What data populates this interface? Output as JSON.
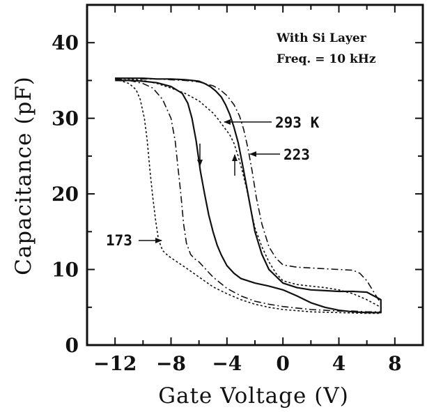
{
  "chart_data": {
    "type": "line",
    "xlabel": "Gate Voltage (V)",
    "ylabel": "Capacitance (pF)",
    "xlim": [
      -14,
      10
    ],
    "ylim": [
      0,
      45
    ],
    "x_ticks": [
      -12,
      -8,
      -4,
      0,
      4,
      8
    ],
    "x_tick_labels": [
      "−12",
      "−8",
      "−4",
      "0",
      "4",
      "8"
    ],
    "y_ticks": [
      0,
      10,
      20,
      30,
      40
    ],
    "y_tick_labels": [
      "0",
      "10",
      "20",
      "30",
      "40"
    ],
    "annotations": [
      "With Si Layer",
      "Freq. = 10 kHz"
    ],
    "series": [
      {
        "name": "293 K",
        "color": "#111111",
        "style": "solid",
        "x": [
          -12,
          -11,
          -10,
          -9,
          -8,
          -7.2,
          -6.8,
          -6.5,
          -6.2,
          -5.9,
          -5.6,
          -5.3,
          -5.0,
          -4.7,
          -4.4,
          -4.0,
          -3.5,
          -3.0,
          -2.0,
          -1.0,
          0.0,
          1.0,
          2.0,
          3.0,
          4.0,
          5.0,
          6.0,
          6.6,
          7.0,
          7.0,
          6.0,
          5.0,
          4.0,
          3.0,
          2.0,
          1.0,
          0.0,
          -1.0,
          -1.5,
          -2.0,
          -2.3,
          -2.6,
          -2.9,
          -3.2,
          -3.5,
          -3.8,
          -4.1,
          -4.4,
          -4.8,
          -5.2,
          -5.6,
          -6.0,
          -6.5,
          -7.0,
          -8.0,
          -9.0,
          -10.0,
          -11.0,
          -12.0
        ],
        "y": [
          35.0,
          35.0,
          34.9,
          34.7,
          34.2,
          33.3,
          32.0,
          30.0,
          27.0,
          23.0,
          20.0,
          17.2,
          15.0,
          13.2,
          11.9,
          10.5,
          9.5,
          8.8,
          8.2,
          7.8,
          7.3,
          6.5,
          5.6,
          5.0,
          4.6,
          4.4,
          4.3,
          4.3,
          4.3,
          6.0,
          7.0,
          7.1,
          7.1,
          7.2,
          7.3,
          7.6,
          8.2,
          10.0,
          12.0,
          15.0,
          18.0,
          21.0,
          24.0,
          26.8,
          28.8,
          30.5,
          31.8,
          32.8,
          33.6,
          34.2,
          34.6,
          34.9,
          35.0,
          35.1,
          35.2,
          35.2,
          35.3,
          35.3,
          35.3
        ],
        "label": "293 K"
      },
      {
        "name": "223",
        "color": "#111111",
        "style": "dashdot",
        "x": [
          -12,
          -11,
          -10,
          -9.3,
          -8.6,
          -8.0,
          -7.7,
          -7.5,
          -7.3,
          -7.1,
          -6.9,
          -6.6,
          -6.3,
          -6.0,
          -5.5,
          -5.0,
          -4.0,
          -3.0,
          -2.0,
          -1.0,
          0.0,
          1.0,
          2.0,
          3.0,
          4.0,
          5.0,
          6.0,
          7.0,
          7.0,
          6.5,
          6.0,
          5.5,
          5.0,
          4.0,
          3.0,
          2.0,
          1.0,
          0.0,
          -0.5,
          -1.0,
          -1.5,
          -1.9,
          -2.2,
          -2.5,
          -2.8,
          -3.1,
          -3.5,
          -4.0,
          -4.5,
          -5.0,
          -6.0,
          -7.0,
          -8.0,
          -9.0,
          -10.0,
          -11.0,
          -12.0
        ],
        "y": [
          35.2,
          35.0,
          34.6,
          34.0,
          32.5,
          30.0,
          27.0,
          23.5,
          20.0,
          16.0,
          13.5,
          12.0,
          11.4,
          11.0,
          10.0,
          9.0,
          7.5,
          6.5,
          5.8,
          5.4,
          5.1,
          4.9,
          4.7,
          4.6,
          4.5,
          4.5,
          4.4,
          4.4,
          5.5,
          7.0,
          8.5,
          9.5,
          9.9,
          10.0,
          10.1,
          10.2,
          10.3,
          10.6,
          11.5,
          13.0,
          16.0,
          19.5,
          23.0,
          26.0,
          28.5,
          30.3,
          31.8,
          33.0,
          33.8,
          34.3,
          34.8,
          35.0,
          35.1,
          35.2,
          35.2,
          35.3,
          35.3
        ],
        "label": "223"
      },
      {
        "name": "173",
        "color": "#111111",
        "style": "dotted",
        "x": [
          -12,
          -11.0,
          -10.5,
          -10.2,
          -9.9,
          -9.7,
          -9.5,
          -9.3,
          -9.1,
          -8.9,
          -8.6,
          -8.2,
          -7.8,
          -7.4,
          -7.0,
          -6.0,
          -5.0,
          -4.0,
          -3.0,
          -2.0,
          -1.0,
          0.0,
          2.0,
          4.0,
          6.0,
          7.0,
          7.0,
          6.0,
          5.0,
          4.0,
          3.0,
          2.0,
          1.0,
          0.0,
          -0.5,
          -1.0,
          -1.5,
          -2.0,
          -2.3,
          -2.6,
          -2.9,
          -3.2,
          -3.5,
          -3.8,
          -4.2,
          -4.6,
          -5.0,
          -5.5,
          -6.0,
          -7.0,
          -8.0,
          -9.0,
          -10.0,
          -11.0,
          -12.0
        ],
        "y": [
          35.2,
          34.6,
          33.8,
          32.5,
          30.0,
          27.0,
          23.0,
          19.5,
          16.5,
          14.0,
          12.5,
          11.8,
          11.3,
          10.8,
          10.3,
          9.0,
          7.7,
          6.8,
          6.0,
          5.4,
          5.0,
          4.7,
          4.4,
          4.3,
          4.2,
          4.2,
          5.0,
          6.0,
          6.8,
          7.3,
          7.6,
          7.8,
          8.0,
          8.5,
          9.5,
          11.0,
          13.0,
          15.5,
          18.0,
          20.7,
          23.0,
          25.0,
          26.7,
          27.8,
          28.8,
          29.8,
          30.7,
          31.5,
          32.3,
          33.3,
          34.0,
          34.6,
          35.0,
          35.2,
          35.3
        ],
        "label": "173"
      }
    ]
  }
}
